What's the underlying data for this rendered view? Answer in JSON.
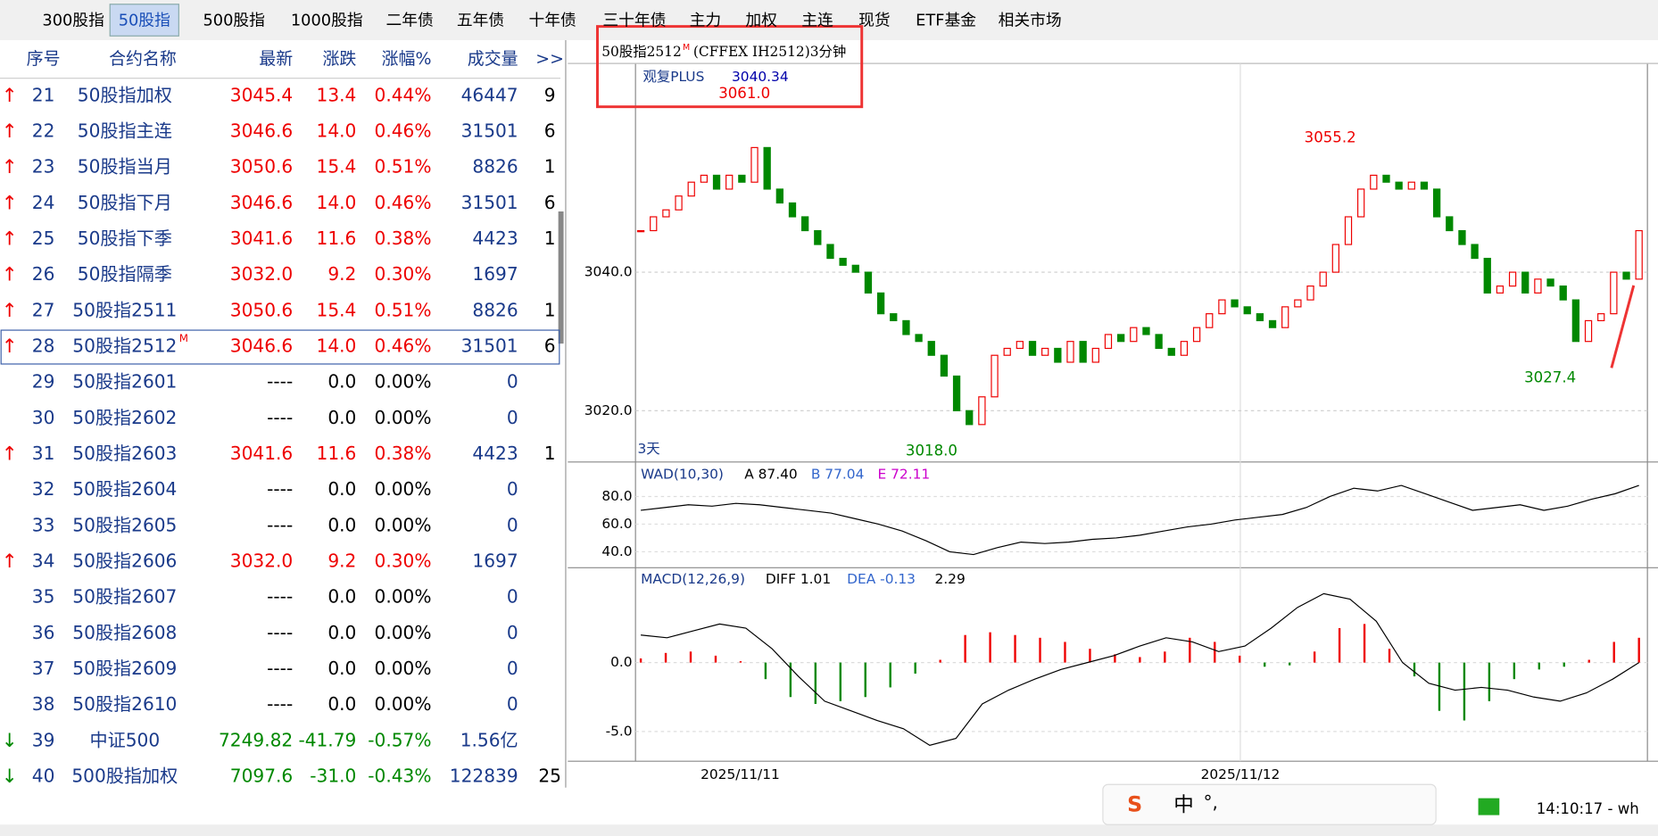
{
  "tabs": [
    "300股指",
    "50股指",
    "500股指",
    "1000股指",
    "二年债",
    "五年债",
    "十年债",
    "三十年债",
    "主力",
    "加权",
    "主连",
    "现货",
    "ETF基金",
    "相关市场"
  ],
  "selected_tab": 1,
  "table": {
    "header": [
      "序号",
      "合约名称",
      "最新",
      "涨跌",
      "涨幅%",
      "成交量",
      ">>"
    ],
    "rows": [
      {
        "arrow": "↑",
        "cells": [
          "21",
          "50股指加权",
          "3045.4",
          "13.4",
          "0.44%",
          "46447",
          "9"
        ]
      },
      {
        "arrow": "↑",
        "cells": [
          "22",
          "50股指主连",
          "3046.6",
          "14.0",
          "0.46%",
          "31501",
          "6"
        ]
      },
      {
        "arrow": "↑",
        "cells": [
          "23",
          "50股指当月",
          "3050.6",
          "15.4",
          "0.51%",
          "8826",
          "1"
        ]
      },
      {
        "arrow": "↑",
        "cells": [
          "24",
          "50股指下月",
          "3046.6",
          "14.0",
          "0.46%",
          "31501",
          "6"
        ]
      },
      {
        "arrow": "↑",
        "cells": [
          "25",
          "50股指下季",
          "3041.6",
          "11.6",
          "0.38%",
          "4423",
          "1"
        ]
      },
      {
        "arrow": "↑",
        "cells": [
          "26",
          "50股指隔季",
          "3032.0",
          "9.2",
          "0.30%",
          "1697"
        ]
      },
      {
        "arrow": "↑",
        "cells": [
          "27",
          "50股指2511",
          "3050.6",
          "15.4",
          "0.51%",
          "8826",
          "1"
        ]
      },
      {
        "arrow": "↑",
        "sup": "M",
        "cells": [
          "28",
          "50股指2512",
          "3046.6",
          "14.0",
          "0.46%",
          "31501",
          "6"
        ]
      },
      {
        "cells": [
          "29",
          "50股指2601",
          "----",
          "0.0",
          "0.00%",
          "0"
        ]
      },
      {
        "cells": [
          "30",
          "50股指2602",
          "----",
          "0.0",
          "0.00%",
          "0"
        ]
      },
      {
        "arrow": "↑",
        "cells": [
          "31",
          "50股指2603",
          "3041.6",
          "11.6",
          "0.38%",
          "4423",
          "1"
        ]
      },
      {
        "cells": [
          "32",
          "50股指2604",
          "----",
          "0.0",
          "0.00%",
          "0"
        ]
      },
      {
        "cells": [
          "33",
          "50股指2605",
          "----",
          "0.0",
          "0.00%",
          "0"
        ]
      },
      {
        "arrow": "↑",
        "cells": [
          "34",
          "50股指2606",
          "3032.0",
          "9.2",
          "0.30%",
          "1697"
        ]
      },
      {
        "cells": [
          "35",
          "50股指2607",
          "----",
          "0.0",
          "0.00%",
          "0"
        ]
      },
      {
        "cells": [
          "36",
          "50股指2608",
          "----",
          "0.0",
          "0.00%",
          "0"
        ]
      },
      {
        "cells": [
          "37",
          "50股指2609",
          "----",
          "0.0",
          "0.00%",
          "0"
        ]
      },
      {
        "cells": [
          "38",
          "50股指2610",
          "----",
          "0.0",
          "0.00%",
          "0"
        ]
      },
      {
        "arrow": "↓",
        "cells": [
          "39",
          "中证500",
          "7249.82",
          "-41.79",
          "-0.57%",
          "1.56亿"
        ]
      },
      {
        "arrow": "↓",
        "cells": [
          "40",
          "500股指加权",
          "7097.6",
          "-31.0",
          "-0.43%",
          "122839",
          "25"
        ]
      }
    ],
    "selected_row": 7
  },
  "chart": {
    "title": "50股指2512",
    "title_sup": "M",
    "title_rest": "(CFFEX IH2512)3分钟",
    "indicator": "观复PLUS",
    "indicator_value": "3040.34",
    "high_label": "3061.0",
    "mid_high_label": "3055.2",
    "low_label": "3018.0",
    "late_low_label": "3027.4",
    "period": "3天",
    "dates": [
      "2025/11/11",
      "2025/11/12"
    ],
    "ylim": [
      3013.2,
      3067.4
    ],
    "yticks": [
      {
        "value": 3040,
        "label": "3040.0"
      },
      {
        "value": 3020,
        "label": "3020.0"
      }
    ],
    "closes": [
      3046,
      3048,
      3049,
      3051,
      3053,
      3054,
      3052,
      3054,
      3053,
      3058,
      3052,
      3050,
      3048,
      3046,
      3044,
      3042,
      3041,
      3040,
      3037,
      3034,
      3033,
      3031,
      3030,
      3028,
      3025,
      3020,
      3018,
      3022,
      3028,
      3029,
      3030,
      3028,
      3029,
      3027,
      3030,
      3027,
      3029,
      3031,
      3030,
      3032,
      3031,
      3029,
      3028,
      3030,
      3032,
      3034,
      3036,
      3035,
      3034,
      3033,
      3032,
      3035,
      3036,
      3038,
      3040,
      3044,
      3048,
      3052,
      3054,
      3053,
      3052,
      3053,
      3052,
      3048,
      3046,
      3044,
      3042,
      3037,
      3038,
      3040,
      3037,
      3039,
      3038,
      3036,
      3030,
      3033,
      3034,
      3040,
      3039,
      3046
    ],
    "wad": {
      "label": "WAD(10,30)",
      "a": "A 87.40",
      "b": "B 77.04",
      "e": "E 72.11",
      "ylim": [
        30,
        95
      ],
      "yticks": [
        {
          "value": 80,
          "label": "80.0"
        },
        {
          "value": 60,
          "label": "60.0"
        },
        {
          "value": 40,
          "label": "40.0"
        }
      ],
      "values": [
        70,
        72,
        74,
        73,
        75,
        74,
        72,
        70,
        68,
        64,
        60,
        55,
        48,
        40,
        38,
        43,
        47,
        46,
        47,
        49,
        50,
        52,
        55,
        58,
        60,
        63,
        65,
        67,
        72,
        80,
        86,
        84,
        88,
        82,
        76,
        70,
        72,
        74,
        70,
        73,
        78,
        82,
        88
      ]
    },
    "macd": {
      "label": "MACD(12,26,9)",
      "diff": "DIFF 1.01",
      "dea": "DEA -0.13",
      "value": "2.29",
      "ylim": [
        -7,
        5.5
      ],
      "yticks": [
        {
          "value": 0,
          "label": "0.0"
        },
        {
          "value": -5,
          "label": "-5.0"
        }
      ],
      "diff_values": [
        2,
        1.8,
        2.3,
        2.8,
        2.5,
        1,
        -1,
        -2.8,
        -3.5,
        -4.2,
        -4.8,
        -6,
        -5.5,
        -3,
        -2,
        -1.2,
        -0.5,
        0,
        0.5,
        1.2,
        1.8,
        1.5,
        0.8,
        1.2,
        2.5,
        4,
        5,
        4.6,
        3,
        0,
        -1.5,
        -2,
        -1.8,
        -2,
        -2.5,
        -2.8,
        -2.2,
        -1.2,
        0
      ],
      "hist": [
        0.3,
        0.7,
        0.8,
        0.5,
        0.1,
        -1.2,
        -2.5,
        -3,
        -2.8,
        -2.5,
        -1.8,
        -0.8,
        0.2,
        2,
        2.2,
        2,
        1.8,
        1.5,
        1,
        0.6,
        0.4,
        0.8,
        1.8,
        1.5,
        0.5,
        -0.3,
        -0.2,
        0.8,
        2.5,
        2.8,
        1,
        -1,
        -3.5,
        -4.2,
        -2.8,
        -1.2,
        -0.5,
        -0.3,
        0.2,
        1.5,
        1.8
      ]
    }
  },
  "taskbar": {
    "ime": [
      "中",
      "°,"
    ],
    "time": "14:10:17 - wh"
  }
}
